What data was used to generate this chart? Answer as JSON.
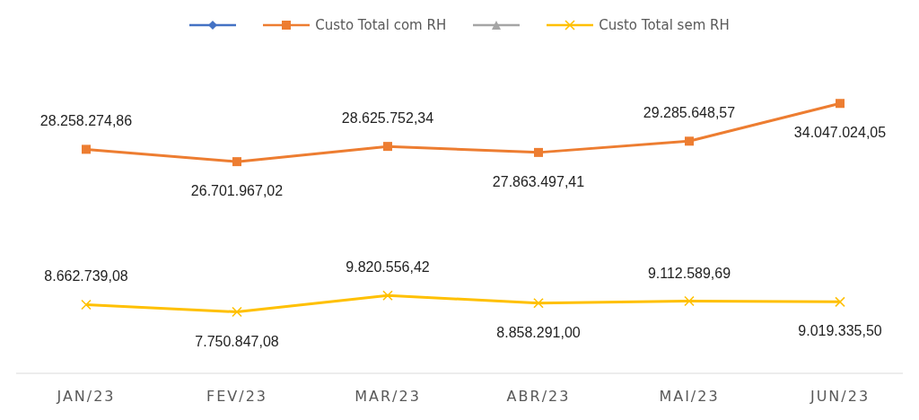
{
  "chart_data": {
    "type": "line",
    "categories": [
      "JAN/23",
      "FEV/23",
      "MAR/23",
      "ABR/23",
      "MAI/23",
      "JUN/23"
    ],
    "series": [
      {
        "color": "#4472c4",
        "marker": "diamond",
        "values": [
          null,
          null,
          null,
          null,
          null,
          null
        ]
      },
      {
        "name": "Custo Total com RH",
        "color": "#ed7d31",
        "marker": "square",
        "values": [
          28258274.86,
          26701967.02,
          28625752.34,
          27863497.41,
          29285648.57,
          34047024.05
        ],
        "value_labels": [
          "28.258.274,86",
          "26.701.967,02",
          "28.625.752,34",
          "27.863.497,41",
          "29.285.648,57",
          "34.047.024,05"
        ]
      },
      {
        "color": "#a5a5a5",
        "marker": "triangle",
        "values": [
          null,
          null,
          null,
          null,
          null,
          null
        ]
      },
      {
        "name": "Custo Total sem RH",
        "color": "#ffc000",
        "marker": "cross",
        "values": [
          8662739.08,
          7750847.08,
          9820556.42,
          8858291.0,
          9112589.69,
          9019335.5
        ],
        "value_labels": [
          "8.662.739,08",
          "7.750.847,08",
          "9.820.556,42",
          "8.858.291,00",
          "9.112.589,69",
          "9.019.335,50"
        ]
      }
    ],
    "legend": "top"
  }
}
